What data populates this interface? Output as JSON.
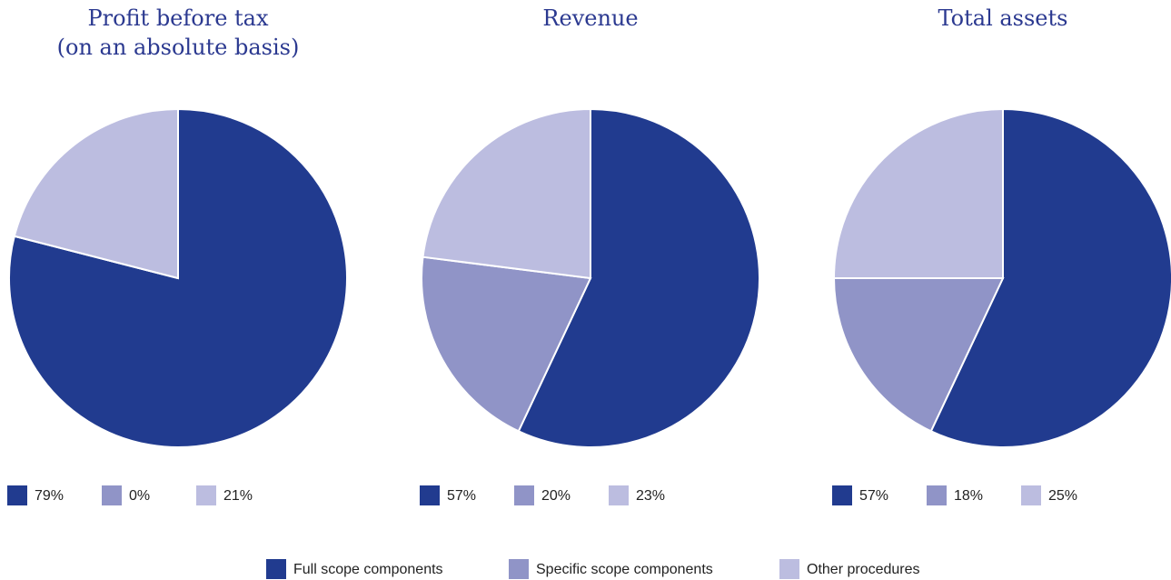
{
  "chart_data": [
    {
      "type": "pie",
      "title": [
        "Profit before tax",
        "(on an absolute basis)"
      ],
      "values": [
        79,
        0,
        21
      ],
      "value_labels": [
        "79%",
        "0%",
        "21%"
      ],
      "colors": [
        "#213b8f",
        "#9094c7",
        "#bcbde0"
      ]
    },
    {
      "type": "pie",
      "title": "Revenue",
      "values": [
        57,
        20,
        23
      ],
      "value_labels": [
        "57%",
        "20%",
        "23%"
      ],
      "colors": [
        "#213b8f",
        "#9094c7",
        "#bcbde0"
      ]
    },
    {
      "type": "pie",
      "title": "Total assets",
      "values": [
        57,
        18,
        25
      ],
      "value_labels": [
        "57%",
        "18%",
        "25%"
      ],
      "colors": [
        "#213b8f",
        "#9094c7",
        "#bcbde0"
      ]
    }
  ],
  "legend": {
    "labels": [
      "Full scope components",
      "Specific scope components",
      "Other procedures"
    ],
    "colors": [
      "#213b8f",
      "#9094c7",
      "#bcbde0"
    ]
  }
}
